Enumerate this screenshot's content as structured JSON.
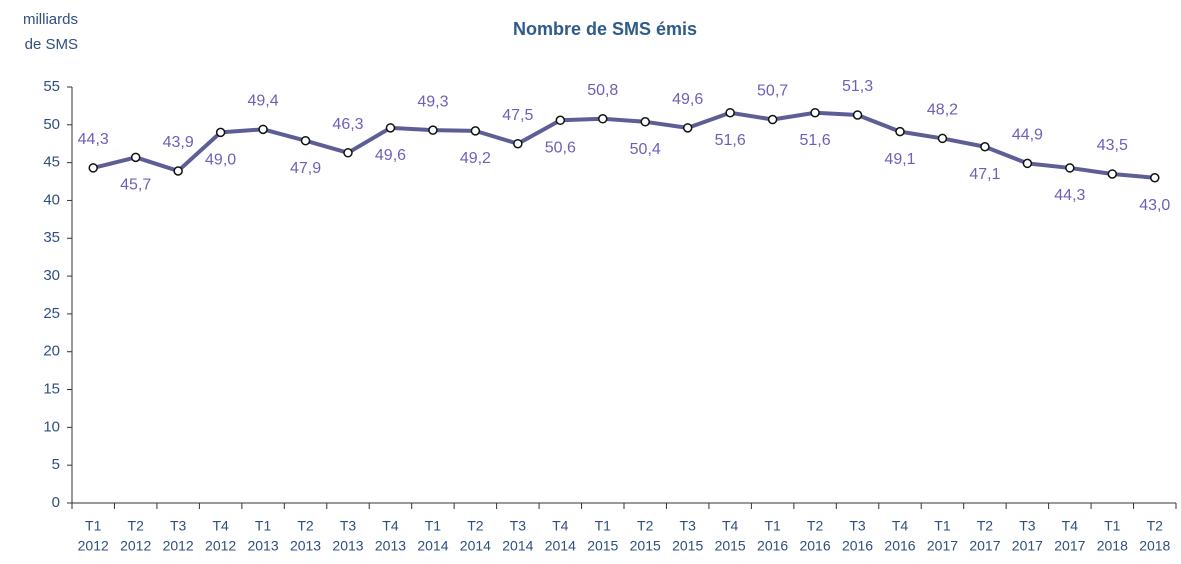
{
  "chart_data": {
    "type": "line",
    "title": "Nombre de SMS émis",
    "y_label": [
      "milliards",
      "de SMS"
    ],
    "categories": [
      [
        "T1",
        "2012"
      ],
      [
        "T2",
        "2012"
      ],
      [
        "T3",
        "2012"
      ],
      [
        "T4",
        "2012"
      ],
      [
        "T1",
        "2013"
      ],
      [
        "T2",
        "2013"
      ],
      [
        "T3",
        "2013"
      ],
      [
        "T4",
        "2013"
      ],
      [
        "T1",
        "2014"
      ],
      [
        "T2",
        "2014"
      ],
      [
        "T3",
        "2014"
      ],
      [
        "T4",
        "2014"
      ],
      [
        "T1",
        "2015"
      ],
      [
        "T2",
        "2015"
      ],
      [
        "T3",
        "2015"
      ],
      [
        "T4",
        "2015"
      ],
      [
        "T1",
        "2016"
      ],
      [
        "T2",
        "2016"
      ],
      [
        "T3",
        "2016"
      ],
      [
        "T4",
        "2016"
      ],
      [
        "T1",
        "2017"
      ],
      [
        "T2",
        "2017"
      ],
      [
        "T3",
        "2017"
      ],
      [
        "T4",
        "2017"
      ],
      [
        "T1",
        "2018"
      ],
      [
        "T2",
        "2018"
      ]
    ],
    "values": [
      44.3,
      45.7,
      43.9,
      49.0,
      49.4,
      47.9,
      46.3,
      49.6,
      49.3,
      49.2,
      47.5,
      50.6,
      50.8,
      50.4,
      49.6,
      51.6,
      50.7,
      51.6,
      51.3,
      49.1,
      48.2,
      47.1,
      44.9,
      44.3,
      43.5,
      43.0
    ],
    "value_labels": [
      "44,3",
      "45,7",
      "43,9",
      "49,0",
      "49,4",
      "47,9",
      "46,3",
      "49,6",
      "49,3",
      "49,2",
      "47,5",
      "50,6",
      "50,8",
      "50,4",
      "49,6",
      "51,6",
      "50,7",
      "51,6",
      "51,3",
      "49,1",
      "48,2",
      "47,1",
      "44,9",
      "44,3",
      "43,5",
      "43,0"
    ],
    "color": "#5e5e96",
    "ylim": [
      0,
      55
    ],
    "yticks": [
      0,
      5,
      10,
      15,
      20,
      25,
      30,
      35,
      40,
      45,
      50,
      55
    ],
    "grid": false
  }
}
